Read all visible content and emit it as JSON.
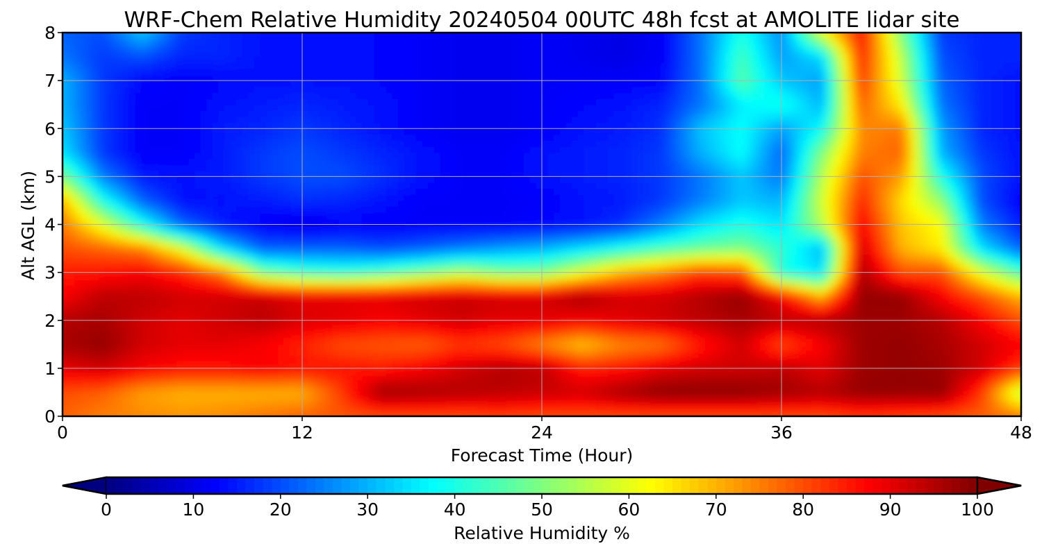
{
  "chart_data": {
    "type": "heatmap",
    "title": "WRF-Chem Relative Humidity 20240504 00UTC 48h fcst at AMOLITE lidar site",
    "xlabel": "Forecast Time (Hour)",
    "ylabel": "Alt AGL (km)",
    "xlim": [
      0,
      48
    ],
    "ylim": [
      0,
      8
    ],
    "x_ticks": [
      0,
      12,
      24,
      36,
      48
    ],
    "x_tick_labels": [
      "0",
      "12",
      "24",
      "36",
      "48"
    ],
    "y_ticks": [
      0,
      1,
      2,
      3,
      4,
      5,
      6,
      7,
      8
    ],
    "y_tick_labels": [
      "0",
      "1",
      "2",
      "3",
      "4",
      "5",
      "6",
      "7",
      "8"
    ],
    "grid": true,
    "colorbar": {
      "label": "Relative Humidity %",
      "min": 0,
      "max": 100,
      "ticks": [
        0,
        10,
        20,
        30,
        40,
        50,
        60,
        70,
        80,
        90,
        100
      ],
      "tick_labels": [
        "0",
        "10",
        "20",
        "30",
        "40",
        "50",
        "60",
        "70",
        "80",
        "90",
        "100"
      ],
      "colormap": "jet",
      "extend": "both",
      "orientation": "horizontal"
    },
    "x": [
      0,
      2,
      4,
      6,
      8,
      10,
      12,
      14,
      16,
      18,
      20,
      22,
      24,
      26,
      28,
      30,
      32,
      34,
      36,
      38,
      40,
      42,
      44,
      46,
      48
    ],
    "y": [
      0,
      0.5,
      1,
      1.5,
      2,
      2.5,
      3,
      3.5,
      4,
      4.5,
      5,
      5.5,
      6,
      6.5,
      7,
      7.5,
      8
    ],
    "values": [
      [
        78,
        75,
        74,
        73,
        74,
        76,
        78,
        79,
        80,
        80,
        80,
        81,
        80,
        80,
        80,
        80,
        80,
        80,
        80,
        80,
        82,
        81,
        80,
        78,
        76
      ],
      [
        80,
        78,
        72,
        70,
        70,
        70,
        70,
        82,
        97,
        96,
        95,
        94,
        93,
        92,
        96,
        99,
        99,
        99,
        97,
        95,
        98,
        98,
        98,
        82,
        55
      ],
      [
        90,
        92,
        88,
        86,
        86,
        88,
        86,
        86,
        85,
        88,
        92,
        95,
        94,
        85,
        86,
        90,
        92,
        92,
        94,
        90,
        97,
        98,
        97,
        92,
        82
      ],
      [
        96,
        98,
        92,
        90,
        90,
        88,
        84,
        80,
        79,
        78,
        82,
        80,
        74,
        68,
        74,
        76,
        85,
        92,
        80,
        88,
        97,
        98,
        96,
        92,
        88
      ],
      [
        95,
        96,
        92,
        90,
        92,
        94,
        91,
        90,
        88,
        90,
        92,
        90,
        90,
        88,
        90,
        92,
        94,
        96,
        94,
        95,
        97,
        97,
        95,
        88,
        80
      ],
      [
        88,
        94,
        94,
        92,
        92,
        93,
        90,
        90,
        90,
        92,
        93,
        92,
        92,
        96,
        92,
        92,
        95,
        98,
        88,
        70,
        98,
        98,
        88,
        80,
        70
      ],
      [
        85,
        86,
        88,
        84,
        75,
        50,
        44,
        42,
        45,
        50,
        55,
        50,
        50,
        60,
        70,
        75,
        82,
        80,
        40,
        35,
        96,
        80,
        80,
        60,
        45
      ],
      [
        80,
        78,
        75,
        60,
        35,
        22,
        22,
        22,
        20,
        22,
        25,
        28,
        30,
        35,
        40,
        45,
        48,
        50,
        42,
        30,
        92,
        70,
        64,
        35,
        22
      ],
      [
        76,
        60,
        40,
        22,
        15,
        12,
        10,
        12,
        12,
        12,
        12,
        12,
        13,
        14,
        17,
        25,
        35,
        40,
        35,
        55,
        88,
        68,
        62,
        25,
        15
      ],
      [
        70,
        40,
        22,
        14,
        14,
        15,
        17,
        16,
        14,
        12,
        12,
        12,
        12,
        14,
        15,
        18,
        25,
        32,
        30,
        58,
        84,
        66,
        52,
        20,
        12
      ],
      [
        50,
        25,
        15,
        14,
        15,
        18,
        20,
        20,
        17,
        14,
        12,
        12,
        14,
        15,
        16,
        18,
        24,
        32,
        24,
        55,
        80,
        72,
        40,
        20,
        14
      ],
      [
        35,
        18,
        12,
        12,
        15,
        18,
        20,
        18,
        16,
        14,
        12,
        12,
        14,
        15,
        16,
        18,
        30,
        38,
        22,
        50,
        75,
        78,
        30,
        18,
        14
      ],
      [
        32,
        18,
        12,
        12,
        15,
        16,
        18,
        16,
        14,
        12,
        11,
        11,
        12,
        14,
        15,
        17,
        32,
        38,
        28,
        38,
        74,
        76,
        28,
        16,
        14
      ],
      [
        30,
        18,
        12,
        12,
        14,
        15,
        16,
        15,
        14,
        12,
        11,
        11,
        12,
        13,
        14,
        16,
        24,
        36,
        40,
        30,
        78,
        64,
        24,
        16,
        14
      ],
      [
        30,
        18,
        13,
        12,
        13,
        14,
        14,
        14,
        13,
        12,
        11,
        11,
        12,
        12,
        12,
        13,
        24,
        46,
        32,
        28,
        82,
        58,
        22,
        16,
        14
      ],
      [
        24,
        18,
        20,
        16,
        16,
        14,
        14,
        14,
        13,
        12,
        11,
        11,
        12,
        11,
        10,
        12,
        24,
        44,
        28,
        34,
        84,
        56,
        20,
        16,
        16
      ],
      [
        22,
        20,
        32,
        18,
        16,
        14,
        14,
        14,
        13,
        12,
        11,
        11,
        12,
        11,
        10,
        12,
        24,
        40,
        26,
        60,
        86,
        50,
        18,
        16,
        16
      ]
    ]
  }
}
